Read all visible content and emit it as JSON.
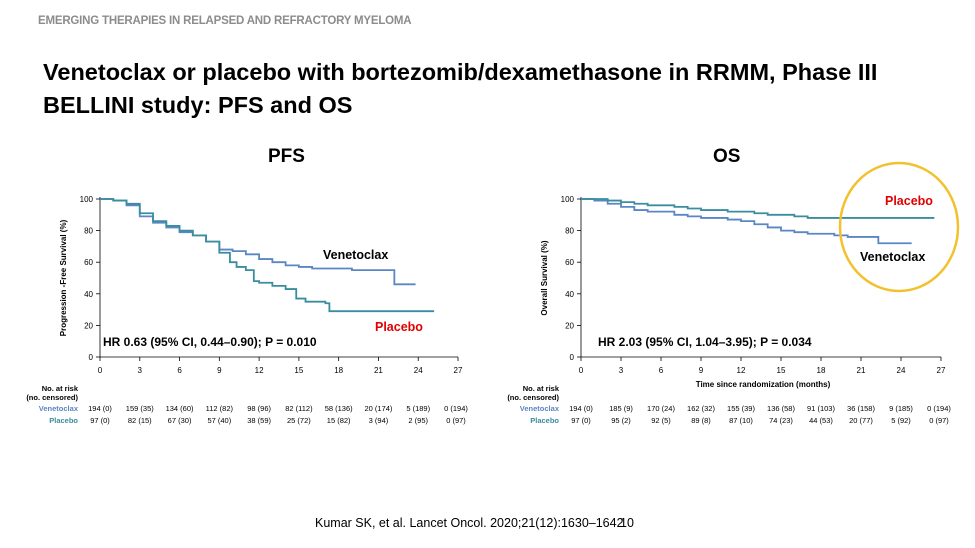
{
  "header": "EMERGING THERAPIES IN RELAPSED AND REFRACTORY MYELOMA",
  "title": "Venetoclax or placebo with bortezomib/dexamethasone in RRMM, Phase III BELLINI study: PFS and OS",
  "citation": "Kumar SK, et al. Lancet Oncol. 2020;21(12):1630–1642",
  "page_number": "10",
  "colors": {
    "venetoclax": "#5b86c4",
    "placebo": "#3a8d9e",
    "placebo_label": "#e00000",
    "highlight": "#f2c12e",
    "header": "#8c8c8c"
  },
  "chart_data": [
    {
      "type": "line",
      "panel_title": "PFS",
      "xlabel": "",
      "ylabel": "Progression -Free Survival (%)",
      "xlim": [
        0,
        27
      ],
      "ylim": [
        0,
        100
      ],
      "x_ticks": [
        0,
        3,
        6,
        9,
        12,
        15,
        18,
        21,
        24,
        27
      ],
      "y_ticks": [
        0,
        20,
        40,
        60,
        80,
        100
      ],
      "annotation": "HR 0.63 (95% CI, 0.44–0.90); P = 0.010",
      "series": [
        {
          "name": "Venetoclax",
          "label_color": "#000000",
          "x": [
            0,
            1,
            2,
            3,
            4,
            5,
            6,
            7,
            8,
            9,
            10,
            11,
            12,
            13,
            14,
            15,
            16,
            17,
            18,
            19,
            20,
            21,
            22,
            22.2,
            23.8
          ],
          "y": [
            100,
            99,
            96,
            89,
            85,
            82,
            79,
            77,
            73,
            68,
            67,
            65,
            62,
            60,
            58,
            57,
            56,
            56,
            56,
            55,
            55,
            55,
            55,
            46,
            46
          ]
        },
        {
          "name": "Placebo",
          "label_color": "#e00000",
          "x": [
            0,
            1,
            2,
            3,
            4,
            5,
            6,
            7,
            8,
            9,
            9.8,
            10.3,
            11,
            11.6,
            12,
            13,
            14,
            14.8,
            15.5,
            16.5,
            17,
            17.3,
            25.2
          ],
          "y": [
            100,
            99,
            97,
            91,
            86,
            83,
            80,
            77,
            73,
            66,
            60,
            57,
            55,
            48,
            47,
            45,
            43,
            37,
            35,
            35,
            34,
            29,
            29
          ]
        }
      ],
      "at_risk": {
        "header": "No. at risk\n(no. censored)",
        "rows": [
          {
            "name": "Venetoclax",
            "values": [
              "194 (0)",
              "159 (35)",
              "134 (60)",
              "112 (82)",
              "98 (96)",
              "82 (112)",
              "58 (136)",
              "20 (174)",
              "5 (189)",
              "0 (194)"
            ]
          },
          {
            "name": "Placebo",
            "values": [
              "97 (0)",
              "82 (15)",
              "67 (30)",
              "57 (40)",
              "38 (59)",
              "25 (72)",
              "15 (82)",
              "3 (94)",
              "2 (95)",
              "0 (97)"
            ]
          }
        ]
      }
    },
    {
      "type": "line",
      "panel_title": "OS",
      "xlabel": "Time since randomization (months)",
      "ylabel": "Overall Survival (%)",
      "xlim": [
        0,
        27
      ],
      "ylim": [
        0,
        100
      ],
      "x_ticks": [
        0,
        3,
        6,
        9,
        12,
        15,
        18,
        21,
        24,
        27
      ],
      "y_ticks": [
        0,
        20,
        40,
        60,
        80,
        100
      ],
      "annotation": "HR 2.03 (95% CI, 1.04–3.95); P = 0.034",
      "series": [
        {
          "name": "Venetoclax",
          "label_color": "#000000",
          "x": [
            0,
            1,
            2,
            3,
            4,
            5,
            6,
            7,
            8,
            9,
            10,
            11,
            12,
            13,
            14,
            15,
            16,
            17,
            18,
            19,
            20,
            21,
            22,
            22.3,
            24.8
          ],
          "y": [
            100,
            99,
            97,
            95,
            93,
            92,
            92,
            90,
            89,
            88,
            88,
            87,
            86,
            84,
            82,
            80,
            79,
            78,
            78,
            77,
            76,
            76,
            76,
            72,
            72
          ]
        },
        {
          "name": "Placebo",
          "label_color": "#e00000",
          "x": [
            0,
            1,
            2,
            3,
            4,
            5,
            6,
            7,
            8,
            9,
            10,
            11,
            12,
            13,
            14,
            15,
            16,
            17,
            18,
            19,
            20,
            21,
            22,
            23,
            24,
            25,
            26.5
          ],
          "y": [
            100,
            100,
            99,
            98,
            97,
            96,
            96,
            95,
            94,
            93,
            93,
            92,
            92,
            91,
            90,
            90,
            89,
            88,
            88,
            88,
            88,
            88,
            88,
            88,
            88,
            88,
            88
          ]
        }
      ],
      "at_risk": {
        "header": "No. at risk\n(no. censored)",
        "rows": [
          {
            "name": "Venetoclax",
            "values": [
              "194 (0)",
              "185 (9)",
              "170 (24)",
              "162 (32)",
              "155 (39)",
              "136 (58)",
              "91 (103)",
              "36 (158)",
              "9 (185)",
              "0 (194)"
            ]
          },
          {
            "name": "Placebo",
            "values": [
              "97 (0)",
              "95 (2)",
              "92 (5)",
              "89 (8)",
              "87 (10)",
              "74 (23)",
              "44 (53)",
              "20 (77)",
              "5 (92)",
              "0 (97)"
            ]
          }
        ]
      }
    }
  ]
}
